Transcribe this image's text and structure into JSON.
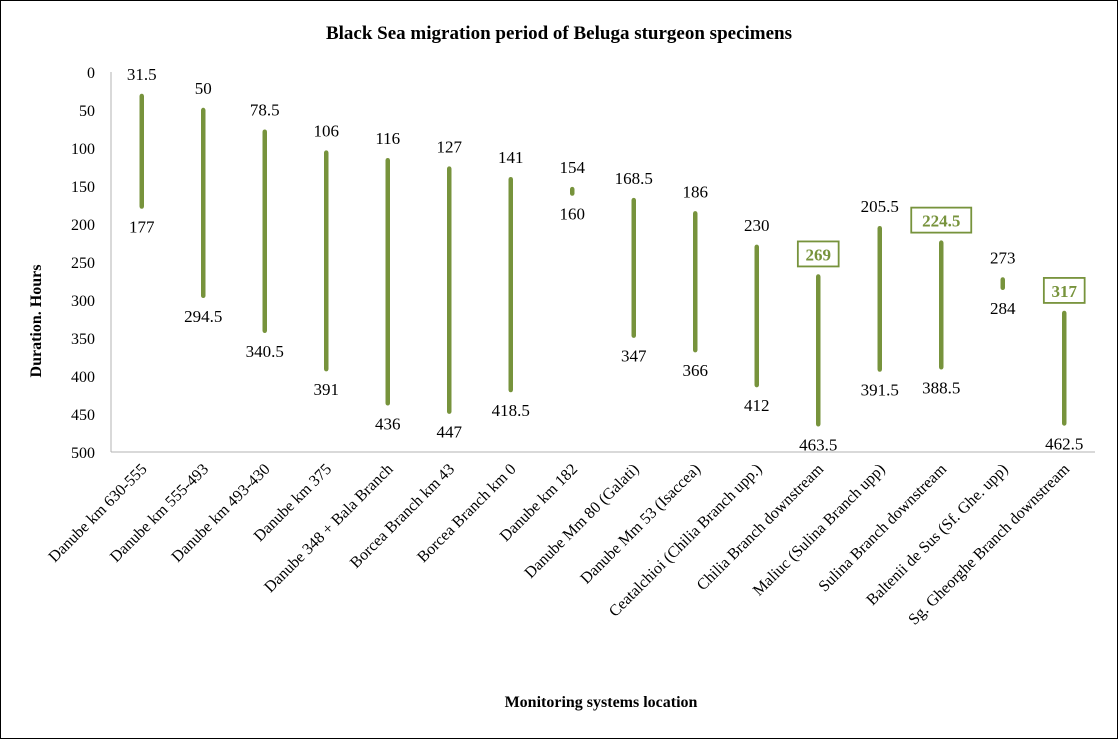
{
  "chart_data": {
    "type": "range-bar",
    "title": "Black Sea migration period of Beluga sturgeon specimens",
    "xlabel": "Monitoring systems location",
    "ylabel": "Duration. Hours",
    "ylim": [
      0,
      500
    ],
    "y_inverted": true,
    "y_ticks": [
      "0",
      "50",
      "100",
      "150",
      "200",
      "250",
      "300",
      "350",
      "400",
      "450",
      "500"
    ],
    "grid": false,
    "series_color": "#77933C",
    "categories": [
      "Danube km 630-555",
      "Danube km 555-493",
      "Danube km 493-430",
      "Danube km 375",
      "Danube 348 + Bala Branch",
      "Borcea Branch km 43",
      "Borcea Branch km 0",
      "Danube km 182",
      "Danube Mm 80 (Galati)",
      "Danube Mm 53 (Isaccea)",
      "Ceatalchioi (Chilia Branch upp.)",
      "Chilia Branch downstream",
      "Maliuc (Sulina Branch upp)",
      "Sulina Branch downstream",
      "Baltenii de Sus (Sf. Ghe. upp)",
      "Sg. Gheorghe Branch downstream"
    ],
    "start": [
      31.5,
      50,
      78.5,
      106,
      116,
      127,
      141,
      154,
      168.5,
      186,
      230,
      269,
      205.5,
      224.5,
      273,
      317
    ],
    "end": [
      177,
      294.5,
      340.5,
      391,
      436,
      447,
      418.5,
      160,
      347,
      366,
      412,
      463.5,
      391.5,
      388.5,
      284,
      462.5
    ],
    "start_labels": [
      "31.5",
      "50",
      "78.5",
      "106",
      "116",
      "127",
      "141",
      "154",
      "168.5",
      "186",
      "230",
      "269",
      "205.5",
      "224.5",
      "273",
      "317"
    ],
    "end_labels": [
      "177",
      "294.5",
      "340.5",
      "391",
      "436",
      "447",
      "418.5",
      "160",
      "347",
      "366",
      "412",
      "463.5",
      "391.5",
      "388.5",
      "284",
      "462.5"
    ],
    "highlighted_start_labels": [
      11,
      13,
      15
    ]
  }
}
